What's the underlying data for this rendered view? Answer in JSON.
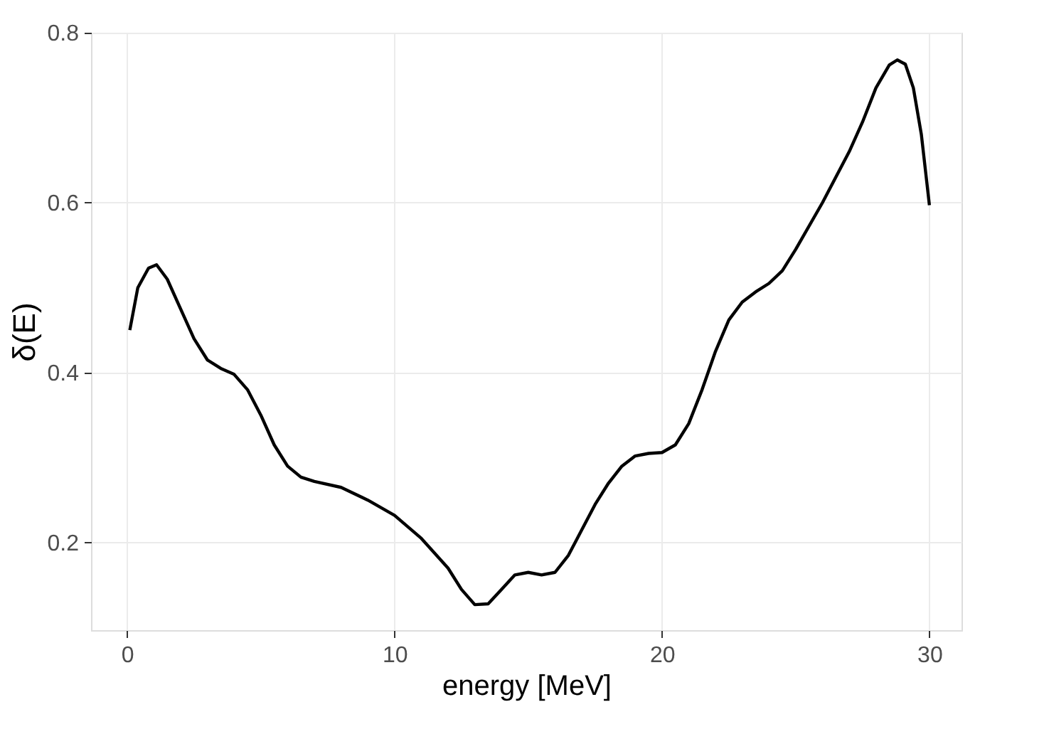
{
  "chart_data": {
    "type": "line",
    "xlabel": "energy [MeV]",
    "ylabel": "δ(E)",
    "x": [
      0.1,
      0.4,
      0.8,
      1.1,
      1.5,
      2,
      2.5,
      3,
      3.5,
      4,
      4.5,
      5,
      5.5,
      6,
      6.5,
      7,
      8,
      9,
      10,
      11,
      12,
      12.5,
      13,
      13.5,
      14,
      14.5,
      15,
      15.5,
      16,
      16.5,
      17,
      17.5,
      18,
      18.5,
      19,
      19.5,
      20,
      20.5,
      21,
      21.5,
      22,
      22.5,
      23,
      23.5,
      24,
      24.5,
      25,
      26,
      27,
      27.5,
      28,
      28.5,
      28.8,
      29.1,
      29.4,
      29.7,
      30
    ],
    "series": [
      {
        "color": "#000000",
        "values": [
          0.45,
          0.5,
          0.523,
          0.527,
          0.51,
          0.475,
          0.44,
          0.415,
          0.405,
          0.398,
          0.38,
          0.35,
          0.315,
          0.29,
          0.277,
          0.272,
          0.265,
          0.25,
          0.232,
          0.205,
          0.17,
          0.145,
          0.127,
          0.128,
          0.145,
          0.162,
          0.165,
          0.162,
          0.165,
          0.185,
          0.215,
          0.245,
          0.27,
          0.29,
          0.302,
          0.305,
          0.306,
          0.315,
          0.34,
          0.38,
          0.425,
          0.462,
          0.483,
          0.495,
          0.505,
          0.52,
          0.545,
          0.6,
          0.66,
          0.695,
          0.735,
          0.762,
          0.768,
          0.763,
          0.735,
          0.68,
          0.597
        ]
      }
    ],
    "xlim": [
      -1.35,
      31.2
    ],
    "ylim": [
      0.097,
      0.8
    ],
    "xticks": [
      0,
      10,
      20,
      30
    ],
    "yticks": [
      0.2,
      0.4,
      0.6,
      0.8
    ],
    "grid": true,
    "marker": "none",
    "line_style": "solid"
  }
}
